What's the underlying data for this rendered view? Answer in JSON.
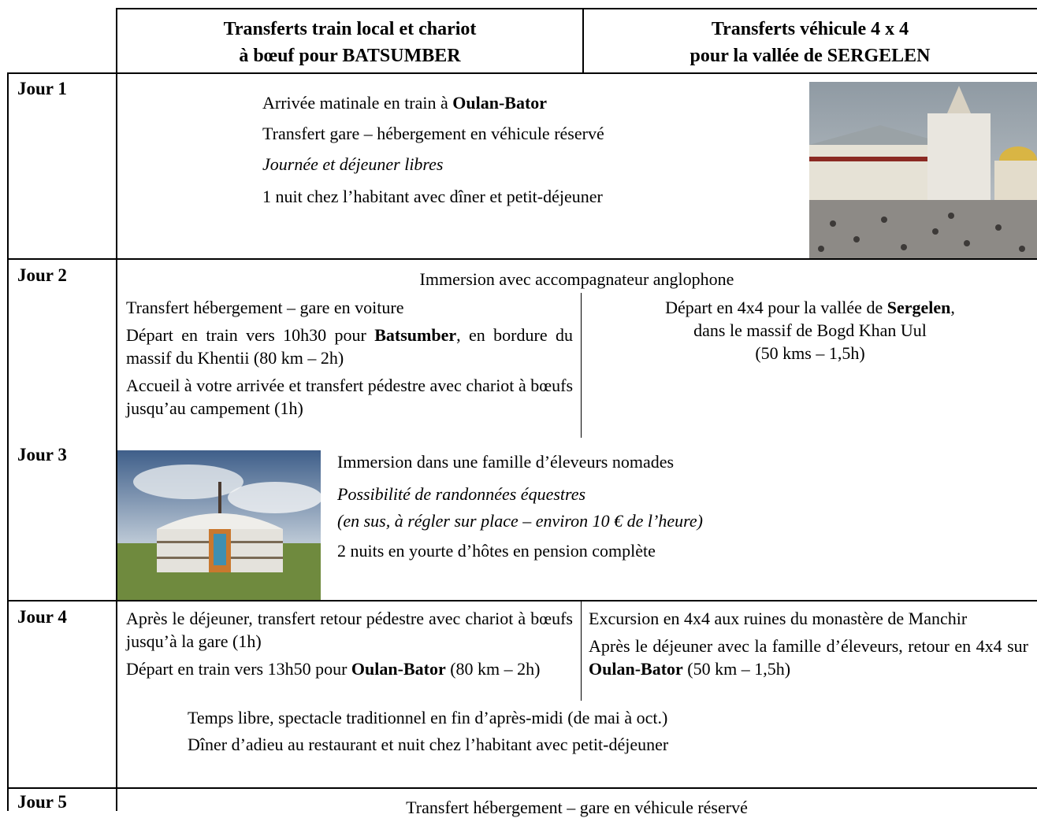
{
  "header": {
    "col1": [
      "Transferts train local et chariot",
      "à bœuf pour BATSUMBER"
    ],
    "col2": [
      "Transferts véhicule 4 x 4",
      "pour la vallée de SERGELEN"
    ]
  },
  "day1": {
    "label": "Jour 1",
    "line1": {
      "text": "Arrivée matinale en train à ",
      "bold": "Oulan-Bator"
    },
    "line2": "Transfert gare – hébergement en véhicule réservé",
    "line3": "Journée et déjeuner libres",
    "line4": "1 nuit chez l’habitant avec dîner et petit-déjeuner"
  },
  "day2": {
    "label": "Jour 2",
    "common": "Immersion avec accompagnateur anglophone",
    "left": {
      "line1": "Transfert hébergement – gare en voiture",
      "line2": {
        "text": "Départ en train vers 10h30 pour ",
        "bold": "Batsumber",
        "after": ", en bordure du massif du Khentii (80 km – 2h)"
      },
      "line3": "Accueil à votre arrivée et transfert pédestre avec chariot à bœufs jusqu’au campement (1h)"
    },
    "right": {
      "text": "Départ en 4x4 pour la vallée de ",
      "bold": "Sergelen",
      "after": ",",
      "line2": "dans le massif de Bogd Khan Uul",
      "line3": "(50 kms – 1,5h)"
    }
  },
  "day3": {
    "label": "Jour 3",
    "line1": "Immersion dans une famille d’éleveurs nomades",
    "line2": "Possibilité de randonnées équestres",
    "line3": "(en sus, à régler sur place – environ 10 € de l’heure)",
    "line4": "2 nuits en yourte d’hôtes en pension complète"
  },
  "day4": {
    "label": "Jour 4",
    "left": {
      "line1": "Après le déjeuner, transfert retour pédestre avec chariot à bœufs jusqu’à la gare (1h)",
      "line2": {
        "text": "Départ en train vers 13h50 pour ",
        "bold": "Oulan-Bator",
        "after": " (80 km – 2h)"
      }
    },
    "right": {
      "line1": "Excursion en 4x4 aux ruines du monastère de Manchir",
      "line2": {
        "text": "Après le déjeuner avec la famille d’éleveurs, retour en 4x4 sur ",
        "bold": "Oulan-Bator",
        "after": " (50 km – 1,5h)"
      }
    },
    "common": [
      "Temps libre, spectacle traditionnel en fin d’après-midi (de mai à oct.)",
      "Dîner d’adieu au restaurant et nuit chez l’habitant avec petit-déjeuner"
    ]
  },
  "day5": {
    "label": "Jour 5",
    "line1": "Transfert hébergement – gare en véhicule réservé"
  }
}
